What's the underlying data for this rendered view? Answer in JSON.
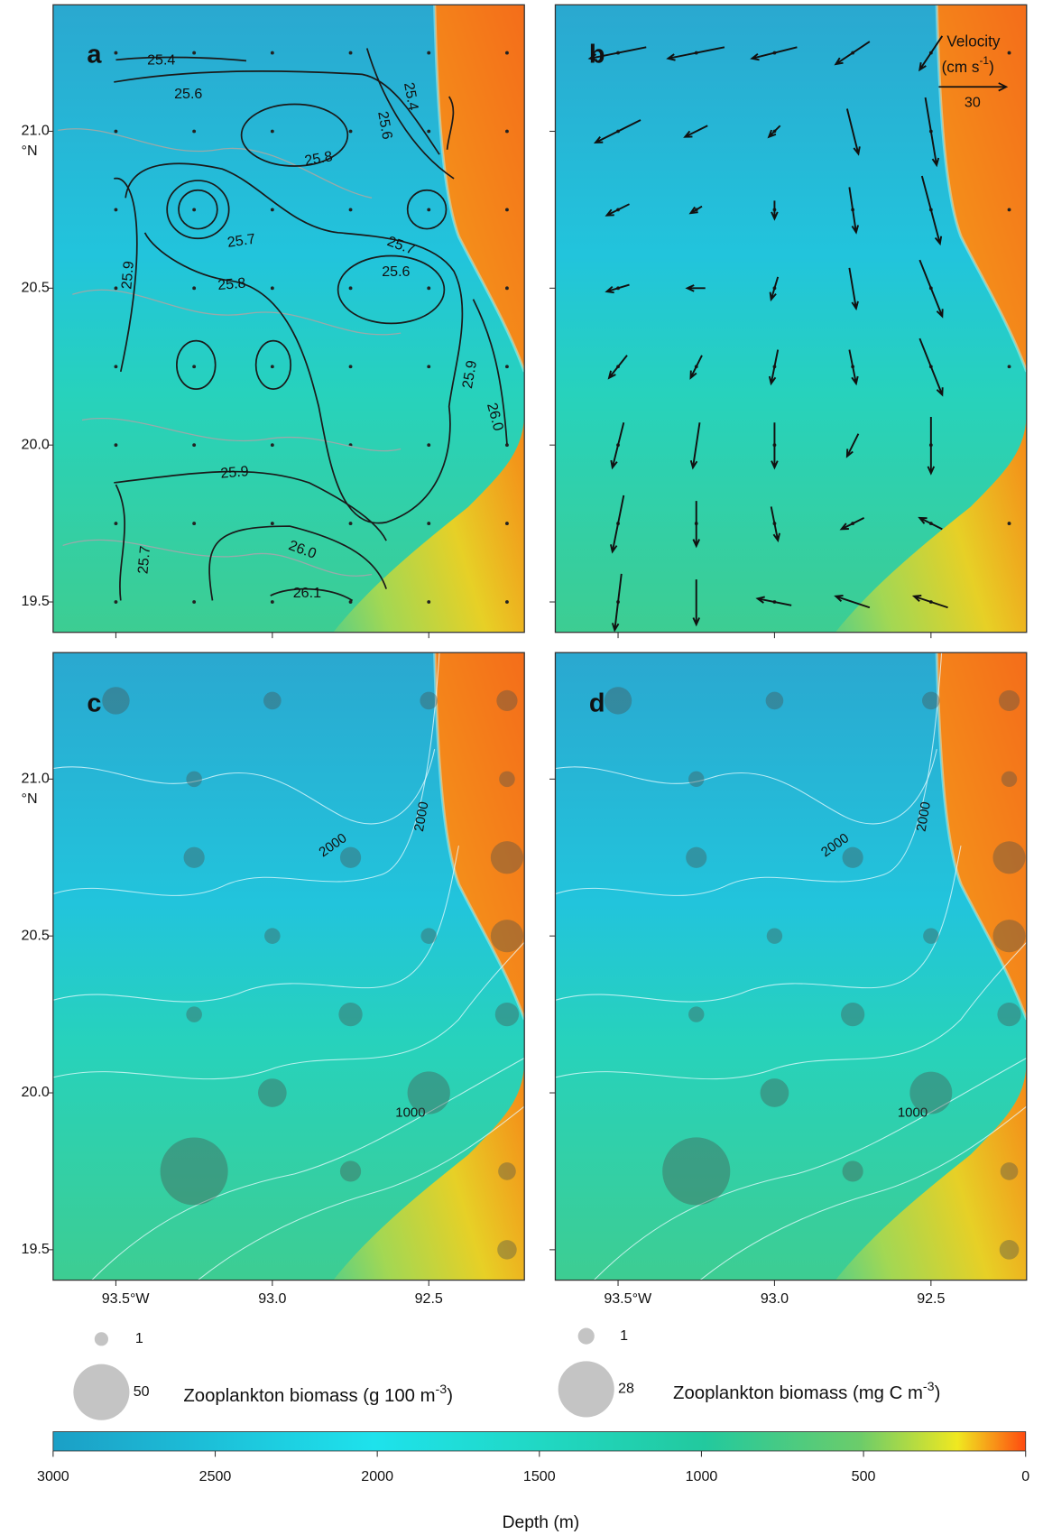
{
  "panels": [
    {
      "label": "a",
      "contour_labels": [
        "25.4",
        "25.6",
        "25.4",
        "25.6",
        "25.8",
        "25.7",
        "25.7",
        "25.6",
        "25.8",
        "25.9",
        "25.9",
        "26.0",
        "25.9",
        "25.7",
        "26.0",
        "26.1"
      ]
    },
    {
      "label": "b"
    },
    {
      "label": "c",
      "depth_labels": [
        "2000",
        "2000",
        "1000"
      ]
    },
    {
      "label": "d",
      "depth_labels": [
        "2000",
        "2000",
        "1000"
      ]
    }
  ],
  "lat_ticks": [
    {
      "value": 21.0,
      "label": "21.0"
    },
    {
      "value": 20.5,
      "label": "20.5"
    },
    {
      "value": 20.0,
      "label": "20.0"
    },
    {
      "value": 19.5,
      "label": "19.5"
    }
  ],
  "lat_unit": "°N",
  "lon_ticks": [
    {
      "value": 93.5,
      "label": "93.5°W"
    },
    {
      "value": 93.0,
      "label": "93.0"
    },
    {
      "value": 92.5,
      "label": "92.5"
    }
  ],
  "velocity": {
    "title": "Velocity",
    "unit_parts": [
      "(cm s",
      "-1",
      ")"
    ],
    "scale": 30,
    "lon": [
      93.5,
      93.25,
      93.0,
      92.75,
      92.5
    ],
    "lat": [
      21.25,
      21.0,
      20.75,
      20.5,
      20.25,
      20.0,
      19.75,
      19.5
    ],
    "u": [
      [
        -25,
        -25,
        -20,
        -15,
        -10
      ],
      [
        -20,
        -10,
        -5,
        5,
        5
      ],
      [
        -10,
        -5,
        0,
        3,
        8
      ],
      [
        -10,
        -8,
        -3,
        3,
        10
      ],
      [
        -8,
        -5,
        -3,
        3,
        10
      ],
      [
        -5,
        -3,
        0,
        -5,
        0
      ],
      [
        -5,
        0,
        3,
        -10,
        -10
      ],
      [
        -3,
        0,
        -15,
        -15,
        -15
      ]
    ],
    "v": [
      [
        -5,
        -5,
        -5,
        -10,
        -15
      ],
      [
        -10,
        -5,
        -5,
        -20,
        -30
      ],
      [
        -5,
        -3,
        -8,
        -20,
        -30
      ],
      [
        -3,
        0,
        -10,
        -18,
        -25
      ],
      [
        -10,
        -10,
        -15,
        -15,
        -25
      ],
      [
        -20,
        -20,
        -20,
        -10,
        -25
      ],
      [
        -25,
        -20,
        -15,
        -5,
        5
      ],
      [
        -25,
        -20,
        3,
        5,
        5
      ]
    ]
  },
  "biomass": [
    {
      "legend_values": [
        1,
        50
      ],
      "label_parts": [
        "Zooplankton biomass (g 100 m",
        "-3",
        ")"
      ],
      "stations": [
        {
          "lon": 93.5,
          "lat": 21.25,
          "value": 12
        },
        {
          "lon": 93.0,
          "lat": 21.25,
          "value": 5
        },
        {
          "lon": 92.5,
          "lat": 21.25,
          "value": 5
        },
        {
          "lon": 92.25,
          "lat": 21.25,
          "value": 7
        },
        {
          "lon": 93.25,
          "lat": 21.0,
          "value": 4
        },
        {
          "lon": 92.25,
          "lat": 21.0,
          "value": 4
        },
        {
          "lon": 93.25,
          "lat": 20.75,
          "value": 7
        },
        {
          "lon": 92.75,
          "lat": 20.75,
          "value": 7
        },
        {
          "lon": 92.25,
          "lat": 20.75,
          "value": 17
        },
        {
          "lon": 93.0,
          "lat": 20.5,
          "value": 4
        },
        {
          "lon": 92.5,
          "lat": 20.5,
          "value": 4
        },
        {
          "lon": 92.25,
          "lat": 20.5,
          "value": 17
        },
        {
          "lon": 93.25,
          "lat": 20.25,
          "value": 4
        },
        {
          "lon": 92.75,
          "lat": 20.25,
          "value": 9
        },
        {
          "lon": 92.25,
          "lat": 20.25,
          "value": 9
        },
        {
          "lon": 93.0,
          "lat": 20.0,
          "value": 13
        },
        {
          "lon": 92.5,
          "lat": 20.0,
          "value": 29
        },
        {
          "lon": 93.25,
          "lat": 19.75,
          "value": 73
        },
        {
          "lon": 92.75,
          "lat": 19.75,
          "value": 7
        },
        {
          "lon": 92.25,
          "lat": 19.75,
          "value": 5
        },
        {
          "lon": 92.25,
          "lat": 19.5,
          "value": 6
        }
      ]
    },
    {
      "legend_values": [
        1,
        28
      ],
      "label_parts": [
        "Zooplankton biomass (mg C m",
        "-3",
        ")"
      ],
      "stations": [
        {
          "lon": 93.5,
          "lat": 21.25,
          "value": 6.7
        },
        {
          "lon": 93.0,
          "lat": 21.25,
          "value": 2.8
        },
        {
          "lon": 92.5,
          "lat": 21.25,
          "value": 2.8
        },
        {
          "lon": 92.25,
          "lat": 21.25,
          "value": 3.9
        },
        {
          "lon": 93.25,
          "lat": 21.0,
          "value": 2.2
        },
        {
          "lon": 92.25,
          "lat": 21.0,
          "value": 2.2
        },
        {
          "lon": 93.25,
          "lat": 20.75,
          "value": 3.9
        },
        {
          "lon": 92.75,
          "lat": 20.75,
          "value": 3.9
        },
        {
          "lon": 92.25,
          "lat": 20.75,
          "value": 9.5
        },
        {
          "lon": 93.0,
          "lat": 20.5,
          "value": 2.2
        },
        {
          "lon": 92.5,
          "lat": 20.5,
          "value": 2.2
        },
        {
          "lon": 92.25,
          "lat": 20.5,
          "value": 9.5
        },
        {
          "lon": 93.25,
          "lat": 20.25,
          "value": 2.2
        },
        {
          "lon": 92.75,
          "lat": 20.25,
          "value": 5
        },
        {
          "lon": 92.25,
          "lat": 20.25,
          "value": 5
        },
        {
          "lon": 93.0,
          "lat": 20.0,
          "value": 7.3
        },
        {
          "lon": 92.5,
          "lat": 20.0,
          "value": 16
        },
        {
          "lon": 93.25,
          "lat": 19.75,
          "value": 41
        },
        {
          "lon": 92.75,
          "lat": 19.75,
          "value": 3.9
        },
        {
          "lon": 92.25,
          "lat": 19.75,
          "value": 2.8
        },
        {
          "lon": 92.25,
          "lat": 19.5,
          "value": 3.4
        }
      ]
    }
  ],
  "colorbar": {
    "label": "Depth (m)",
    "lim": [
      3000,
      0
    ],
    "ticks": [
      3000,
      2500,
      2000,
      1500,
      1000,
      500,
      0
    ]
  }
}
